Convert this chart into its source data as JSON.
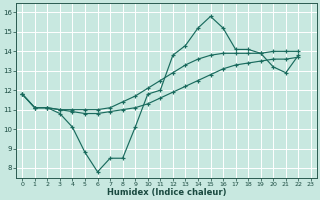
{
  "xlabel": "Humidex (Indice chaleur)",
  "bg_color": "#c8e8e0",
  "grid_color": "#aad4cc",
  "line_color": "#1a6b5e",
  "xlim": [
    -0.5,
    23.5
  ],
  "ylim": [
    7.5,
    16.5
  ],
  "xticks": [
    0,
    1,
    2,
    3,
    4,
    5,
    6,
    7,
    8,
    9,
    10,
    11,
    12,
    13,
    14,
    15,
    16,
    17,
    18,
    19,
    20,
    21,
    22,
    23
  ],
  "yticks": [
    8,
    9,
    10,
    11,
    12,
    13,
    14,
    15,
    16
  ],
  "curve_main": [
    11.8,
    11.1,
    11.1,
    10.8,
    10.1,
    8.8,
    7.8,
    8.5,
    8.5,
    10.1,
    11.8,
    12.0,
    13.8,
    14.3,
    15.2,
    15.8,
    15.2,
    14.1,
    14.1,
    13.9,
    13.2,
    12.9,
    13.8
  ],
  "curve_main_x": [
    0,
    1,
    2,
    4,
    5,
    6,
    6,
    7,
    8,
    9,
    10,
    11,
    13,
    14,
    15,
    16,
    17,
    18,
    19,
    20,
    21,
    22,
    23
  ],
  "curve_upper": [
    11.8,
    11.1,
    11.1,
    11.0,
    11.0,
    11.0,
    11.0,
    11.1,
    11.4,
    11.7,
    12.1,
    12.5,
    12.9,
    13.3,
    13.6,
    13.8,
    13.9,
    13.9,
    13.9,
    13.9,
    14.0,
    14.0,
    14.0
  ],
  "curve_lower": [
    11.8,
    11.1,
    11.1,
    11.0,
    10.9,
    10.8,
    10.8,
    10.9,
    11.0,
    11.1,
    11.3,
    11.6,
    11.9,
    12.2,
    12.5,
    12.8,
    13.1,
    13.3,
    13.4,
    13.5,
    13.6,
    13.6,
    13.7
  ]
}
